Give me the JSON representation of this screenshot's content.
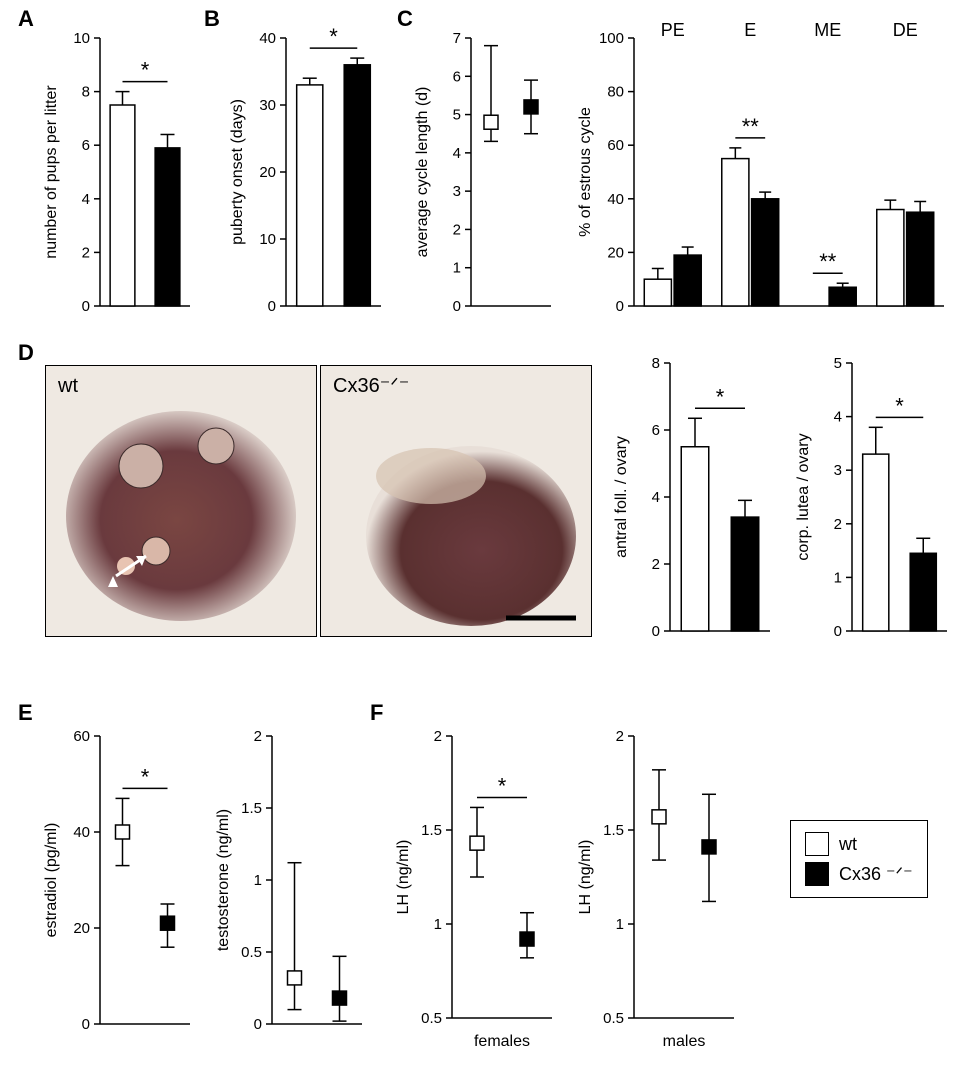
{
  "panelLabels": {
    "A": "A",
    "B": "B",
    "C": "C",
    "D": "D",
    "E": "E",
    "F": "F"
  },
  "colors": {
    "wt": "#ffffff",
    "ko": "#000000",
    "axis": "#000000",
    "tick": "#000000",
    "text": "#000000",
    "histo_wt": "linear-gradient(#6b3a3a,#8a5a52)",
    "bg": "#ffffff"
  },
  "legend": {
    "wt": "wt",
    "ko": "Cx36 ⁻ᐟ⁻"
  },
  "A": {
    "type": "bar",
    "ylabel": "number of pups per litter",
    "ylim": [
      0,
      10
    ],
    "yticks": [
      0,
      2,
      4,
      6,
      8,
      10
    ],
    "bars": [
      {
        "g": "wt",
        "v": 7.5,
        "err": 0.5
      },
      {
        "g": "ko",
        "v": 5.9,
        "err": 0.5
      }
    ],
    "sig": "*",
    "bar_width": 0.55
  },
  "B": {
    "type": "bar",
    "ylabel": "puberty onset (days)",
    "ylim": [
      0,
      40
    ],
    "yticks": [
      0,
      10,
      20,
      30,
      40
    ],
    "bars": [
      {
        "g": "wt",
        "v": 33,
        "err": 1
      },
      {
        "g": "ko",
        "v": 36,
        "err": 1
      }
    ],
    "sig": "*",
    "bar_width": 0.55
  },
  "C_left": {
    "type": "boxpoint",
    "ylabel": "average cycle length (d)",
    "ylim": [
      0,
      7
    ],
    "yticks": [
      0,
      1,
      2,
      3,
      4,
      5,
      6,
      7
    ],
    "points": [
      {
        "g": "wt",
        "v": 4.8,
        "lo": 4.3,
        "hi": 6.8
      },
      {
        "g": "ko",
        "v": 5.2,
        "lo": 4.5,
        "hi": 5.9
      }
    ]
  },
  "C_right": {
    "type": "grouped_bar",
    "ylabel": "% of estrous cycle",
    "ylim": [
      0,
      100
    ],
    "yticks": [
      0,
      20,
      40,
      60,
      80,
      100
    ],
    "groups": [
      "PE",
      "E",
      "ME",
      "DE"
    ],
    "series": {
      "wt": [
        10,
        55,
        0,
        36
      ],
      "ko": [
        19,
        40,
        7,
        35
      ]
    },
    "err": {
      "wt": [
        4,
        4,
        0,
        3.5
      ],
      "ko": [
        3,
        2.5,
        1.5,
        4
      ]
    },
    "sig": {
      "E": "**",
      "ME": "**"
    },
    "bar_width": 0.35
  },
  "D_images": {
    "labels": {
      "wt": "wt",
      "ko": "Cx36⁻ᐟ⁻"
    }
  },
  "D_bar1": {
    "type": "bar",
    "ylabel": "antral foll. / ovary",
    "ylim": [
      0,
      8
    ],
    "yticks": [
      0,
      2,
      4,
      6,
      8
    ],
    "bars": [
      {
        "g": "wt",
        "v": 5.5,
        "err": 0.85
      },
      {
        "g": "ko",
        "v": 3.4,
        "err": 0.5
      }
    ],
    "sig": "*",
    "bar_width": 0.55
  },
  "D_bar2": {
    "type": "bar",
    "ylabel": "corp. lutea / ovary",
    "ylim": [
      0,
      5
    ],
    "yticks": [
      0,
      1,
      2,
      3,
      4,
      5
    ],
    "bars": [
      {
        "g": "wt",
        "v": 3.3,
        "err": 0.5
      },
      {
        "g": "ko",
        "v": 1.45,
        "err": 0.28
      }
    ],
    "sig": "*",
    "bar_width": 0.55
  },
  "E_left": {
    "type": "boxpoint",
    "ylabel": "estradiol (pg/ml)",
    "ylim": [
      0,
      60
    ],
    "yticks": [
      0,
      20,
      40,
      60
    ],
    "points": [
      {
        "g": "wt",
        "v": 40,
        "lo": 33,
        "hi": 47
      },
      {
        "g": "ko",
        "v": 21,
        "lo": 16,
        "hi": 25
      }
    ],
    "sig": "*"
  },
  "E_right": {
    "type": "boxpoint",
    "ylabel": "testosterone (ng/ml)",
    "ylim": [
      0,
      2.0
    ],
    "yticks": [
      0,
      0.5,
      1.0,
      1.5,
      2.0
    ],
    "points": [
      {
        "g": "wt",
        "v": 0.32,
        "lo": 0.1,
        "hi": 1.12
      },
      {
        "g": "ko",
        "v": 0.18,
        "lo": 0.02,
        "hi": 0.47
      }
    ]
  },
  "F_left": {
    "type": "boxpoint",
    "ylabel": "LH (ng/ml)",
    "xlabel": "females",
    "ylim": [
      0.5,
      2.0
    ],
    "yticks": [
      0.5,
      1.0,
      1.5,
      2.0
    ],
    "points": [
      {
        "g": "wt",
        "v": 1.43,
        "lo": 1.25,
        "hi": 1.62
      },
      {
        "g": "ko",
        "v": 0.92,
        "lo": 0.82,
        "hi": 1.06
      }
    ],
    "sig": "*"
  },
  "F_right": {
    "type": "boxpoint",
    "ylabel": "LH (ng/ml)",
    "xlabel": "males",
    "ylim": [
      0.5,
      2.0
    ],
    "yticks": [
      0.5,
      1.0,
      1.5,
      2.0
    ],
    "points": [
      {
        "g": "wt",
        "v": 1.57,
        "lo": 1.34,
        "hi": 1.82
      },
      {
        "g": "ko",
        "v": 1.41,
        "lo": 1.12,
        "hi": 1.69
      }
    ]
  },
  "style": {
    "axis_stroke": 1.5,
    "tick_len": 6,
    "font_axis": 16,
    "font_tick": 15,
    "font_group": 18,
    "font_sig": 22,
    "marker_size": 14
  }
}
